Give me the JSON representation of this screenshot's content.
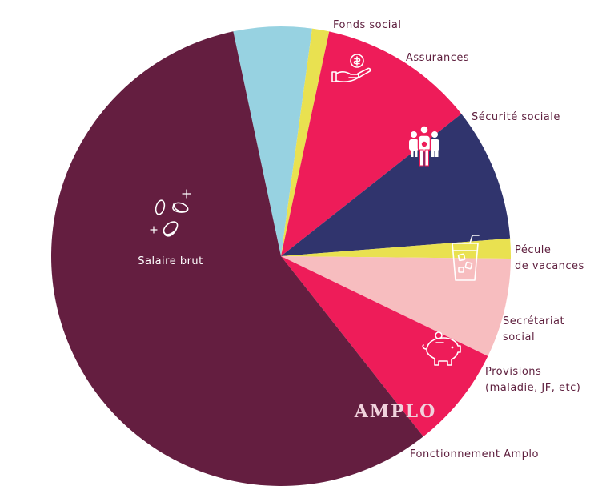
{
  "chart_data": {
    "type": "pie",
    "slices": [
      {
        "label": "Fonds social",
        "value": 5.5,
        "color": "#97d2e1",
        "icon": "hand-coin-icon"
      },
      {
        "label": "Assurances",
        "value": 1.2,
        "color": "#e9e150",
        "icon": ""
      },
      {
        "label": "Sécurité sociale",
        "value": 11.0,
        "color": "#ee1c59",
        "icon": "people-group-icon"
      },
      {
        "label": "Pécule de vacances",
        "value": 9.4,
        "color": "#30346d",
        "icon": "iced-drink-icon"
      },
      {
        "label": "Secrétariat social",
        "value": 1.4,
        "color": "#e9e150",
        "icon": ""
      },
      {
        "label": "Provisions (maladie, JF, etc)",
        "value": 7.0,
        "color": "#f7bdbf",
        "icon": "piggy-bank-icon"
      },
      {
        "label": "Fonctionnement Amplo",
        "value": 7.2,
        "color": "#ee1c59",
        "icon": "amplo-logo"
      },
      {
        "label": "Salaire brut",
        "value": 57.3,
        "color": "#641e40",
        "icon": "coins-icon"
      }
    ]
  },
  "labels": {
    "fonds_social": "Fonds social",
    "assurances": "Assurances",
    "securite_sociale": "Sécurité sociale",
    "pecule_1": "Pécule",
    "pecule_2": "de vacances",
    "secretariat_1": "Secrétariat",
    "secretariat_2": "social",
    "provisions_1": "Provisions",
    "provisions_2": "(maladie, JF, etc)",
    "fonctionnement": "Fonctionnement Amplo",
    "salaire": "Salaire brut"
  },
  "brand": "AMPLO"
}
